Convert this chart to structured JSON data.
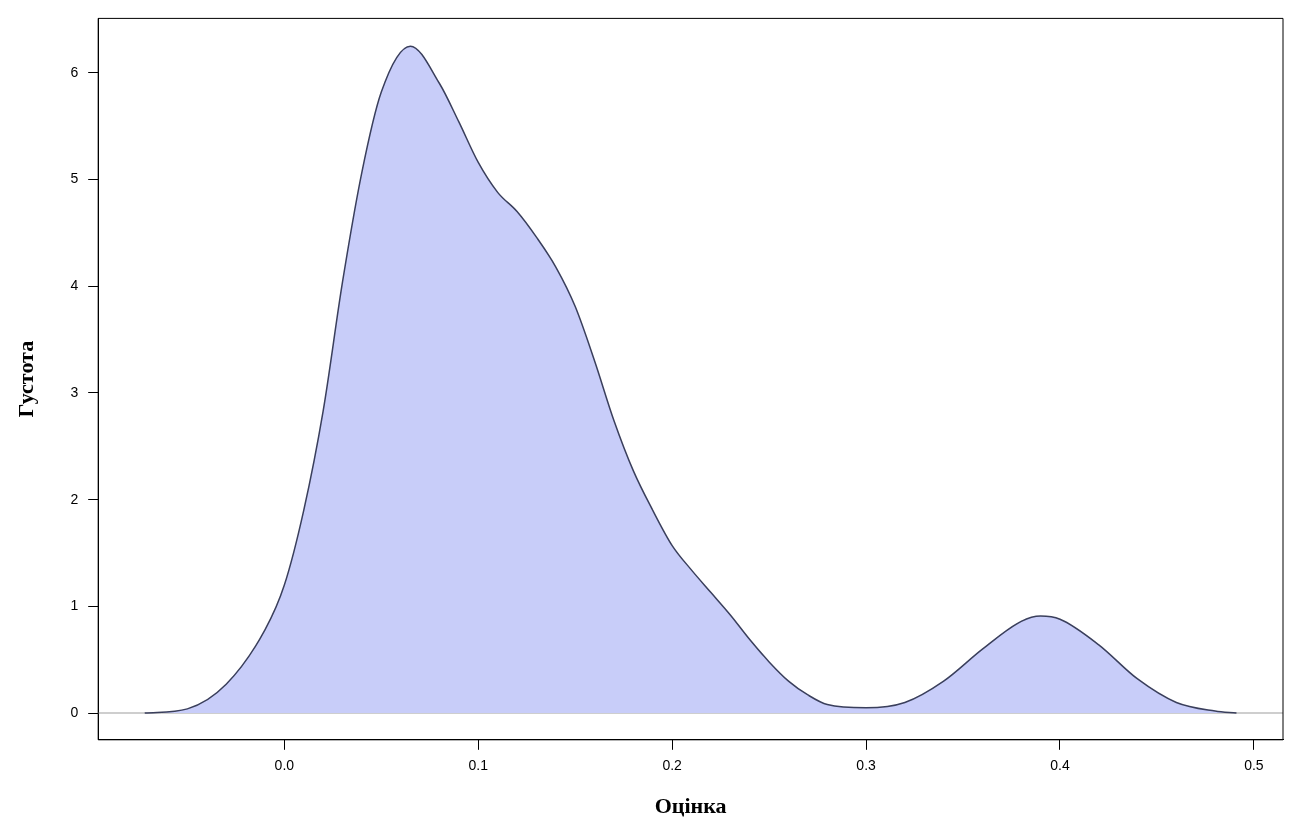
{
  "chart_data": {
    "type": "area",
    "xlabel": "Оцінка",
    "ylabel": "Густота",
    "xlim": [
      -0.096,
      0.515
    ],
    "ylim": [
      -0.25,
      6.51
    ],
    "xticks": [
      {
        "value": 0,
        "label": "0.0"
      },
      {
        "value": 0.1,
        "label": "0.1"
      },
      {
        "value": 0.2,
        "label": "0.2"
      },
      {
        "value": 0.3,
        "label": "0.3"
      },
      {
        "value": 0.4,
        "label": "0.4"
      },
      {
        "value": 0.5,
        "label": "0.5"
      }
    ],
    "yticks": [
      0,
      1,
      2,
      3,
      4,
      5,
      6
    ],
    "grid": false,
    "legend": false,
    "ref_lines": [
      {
        "axis": "y",
        "value": 0,
        "color": "#bebebe"
      }
    ],
    "series": [
      {
        "color": "#c8cdf9",
        "x": [
          -0.072,
          -0.05,
          -0.03,
          -0.01,
          0.0,
          0.01,
          0.02,
          0.03,
          0.04,
          0.05,
          0.065,
          0.08,
          0.09,
          0.1,
          0.11,
          0.12,
          0.13,
          0.14,
          0.15,
          0.16,
          0.17,
          0.18,
          0.19,
          0.2,
          0.21,
          0.22,
          0.23,
          0.24,
          0.25,
          0.26,
          0.27,
          0.28,
          0.3,
          0.32,
          0.34,
          0.36,
          0.38,
          0.39,
          0.4,
          0.42,
          0.44,
          0.46,
          0.48,
          0.491
        ],
        "values": [
          0,
          0.04,
          0.27,
          0.78,
          1.2,
          1.9,
          2.83,
          4.04,
          5.07,
          5.82,
          6.25,
          5.9,
          5.54,
          5.16,
          4.88,
          4.7,
          4.46,
          4.18,
          3.81,
          3.3,
          2.74,
          2.27,
          1.9,
          1.57,
          1.34,
          1.13,
          0.92,
          0.69,
          0.48,
          0.3,
          0.17,
          0.08,
          0.05,
          0.1,
          0.3,
          0.6,
          0.86,
          0.91,
          0.88,
          0.64,
          0.32,
          0.1,
          0.02,
          0
        ]
      }
    ]
  }
}
